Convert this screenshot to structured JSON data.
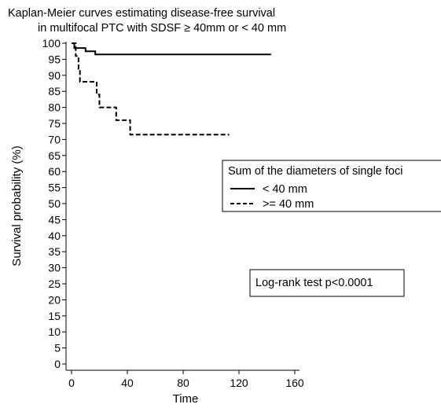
{
  "chart_data": {
    "type": "line",
    "title_lines": [
      "Kaplan-Meier curves estimating disease-free survival",
      "in multifocal PTC with SDSF ≥ 40mm  or < 40 mm"
    ],
    "xlabel": "Time",
    "ylabel": "Survival probability (%)",
    "xlim": [
      0,
      160
    ],
    "ylim": [
      0,
      100
    ],
    "x_ticks": [
      0,
      40,
      80,
      120,
      160
    ],
    "y_ticks": [
      0,
      5,
      10,
      15,
      20,
      25,
      30,
      35,
      40,
      45,
      50,
      55,
      60,
      65,
      70,
      75,
      80,
      85,
      90,
      95,
      100
    ],
    "legend": {
      "title": "Sum of the diameters of single foci",
      "position": "right",
      "entries": [
        {
          "label": "< 40 mm",
          "style": "solid"
        },
        {
          "label": ">= 40 mm",
          "style": "dashed"
        }
      ]
    },
    "annotation": "Log-rank test p<0.0001",
    "series": [
      {
        "style": "solid",
        "points": [
          [
            0,
            100
          ],
          [
            2,
            100
          ],
          [
            2,
            98.5
          ],
          [
            10,
            98.5
          ],
          [
            10,
            97.5
          ],
          [
            17,
            97.5
          ],
          [
            17,
            96.5
          ],
          [
            143,
            96.5
          ]
        ]
      },
      {
        "style": "dashed",
        "points": [
          [
            0,
            100
          ],
          [
            3,
            100
          ],
          [
            3,
            96
          ],
          [
            5,
            96
          ],
          [
            5,
            92
          ],
          [
            6,
            92
          ],
          [
            6,
            88
          ],
          [
            18,
            88
          ],
          [
            18,
            84
          ],
          [
            20,
            84
          ],
          [
            20,
            80
          ],
          [
            32,
            80
          ],
          [
            32,
            76
          ],
          [
            42,
            76
          ],
          [
            42,
            71.5
          ],
          [
            113,
            71.5
          ]
        ]
      }
    ]
  }
}
